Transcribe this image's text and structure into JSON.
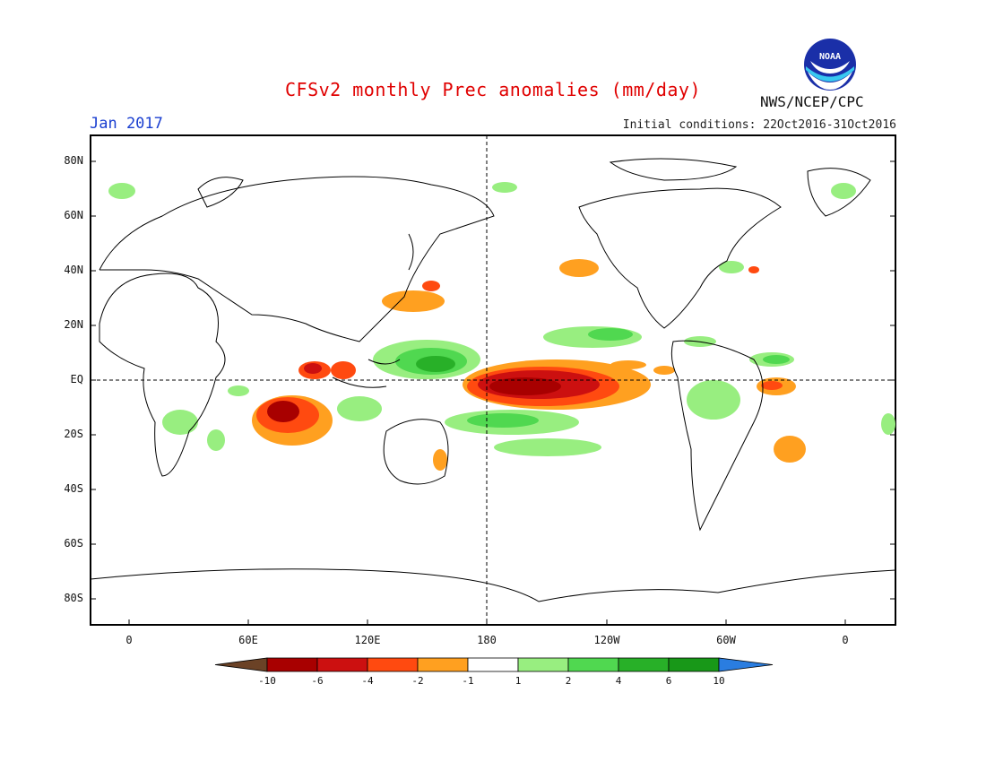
{
  "header": {
    "title": "CFSv2 monthly Prec anomalies (mm/day)",
    "month": "Jan 2017",
    "initial_conditions": "Initial conditions: 22Oct2016-31Oct2016",
    "agency": "NWS/NCEP/CPC",
    "logo_text": "NOAA"
  },
  "axes": {
    "lat_labels": [
      "80N",
      "60N",
      "40N",
      "20N",
      "EQ",
      "20S",
      "40S",
      "60S",
      "80S"
    ],
    "lon_labels": [
      "0",
      "60E",
      "120E",
      "180",
      "120W",
      "60W",
      "0"
    ]
  },
  "legend": {
    "labels": [
      "-10",
      "-6",
      "-4",
      "-2",
      "-1",
      "1",
      "2",
      "4",
      "6",
      "10"
    ],
    "colors": [
      "#6b4226",
      "#a80000",
      "#cc1010",
      "#ff4a10",
      "#ffa020",
      "#ffffff",
      "#98ee80",
      "#50d850",
      "#28b028",
      "#189818",
      "#2a7de0"
    ]
  },
  "colors": {
    "title": "#e00000",
    "month": "#1a3fd0"
  }
}
